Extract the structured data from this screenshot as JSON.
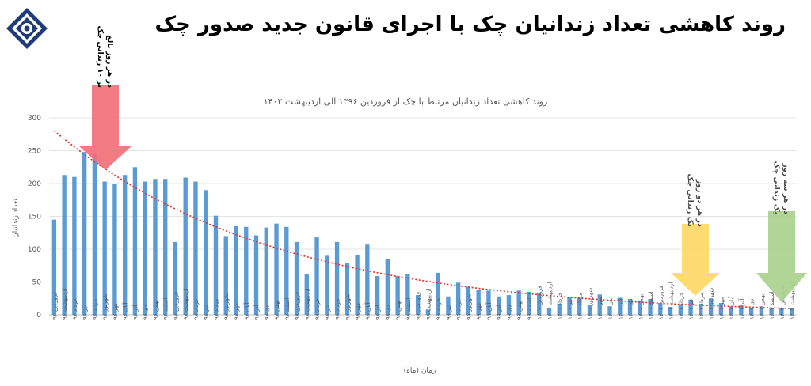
{
  "header": {
    "title": "روند کاهشی تعداد زندانیان چک با اجرای قانون جدید صدور چک"
  },
  "chart_data": {
    "type": "bar",
    "title": "روند کاهشی تعداد زندانیان مرتبط با چک از فروردین ۱۳۹۶ الی اردیبهشت ۱۴۰۲",
    "xlabel": "زمان (ماه)",
    "ylabel": "تعداد زندانیان",
    "ylim": [
      0,
      300
    ],
    "yticks": [
      0,
      50,
      100,
      150,
      200,
      250,
      300
    ],
    "grid": true,
    "legend": "none",
    "categories": [
      "فروردین ۹۶",
      "اردیبهشت ۹۶",
      "خرداد ۹۶",
      "تیر ۹۶",
      "مرداد ۹۶",
      "شهریور ۹۶",
      "مهر ۹۶",
      "آبان ۹۶",
      "آذر ۹۶",
      "دی ۹۶",
      "بهمن ۹۶",
      "اسفند ۹۶",
      "فروردین ۹۷",
      "اردیبهشت ۹۷",
      "خرداد ۹۷",
      "تیر ۹۷",
      "مرداد ۹۷",
      "شهریور ۹۷",
      "مهر ۹۷",
      "آبان ۹۷",
      "آذر ۹۷",
      "دی ۹۷",
      "بهمن ۹۷",
      "اسفند ۹۷",
      "فروردین ۹۸",
      "اردیبهشت ۹۸",
      "خرداد ۹۸",
      "تیر ۹۸",
      "مرداد ۹۸",
      "شهریور ۹۸",
      "مهر ۹۸",
      "آبان ۹۸",
      "آذر ۹۸",
      "دی ۹۸",
      "بهمن ۹۸",
      "اسفند ۹۸",
      "فروردین ۹۹",
      "اردیبهشت ۹۹",
      "خرداد ۹۹",
      "تیر ۹۹",
      "مرداد ۹۹",
      "شهریور ۹۹",
      "مهر ۹۹",
      "آبان ۹۹",
      "آذر ۹۹",
      "دی ۹۹",
      "بهمن ۹۹",
      "اسفند ۹۹",
      "فروردین ۱۴۰۰",
      "اردیبهشت ۱۴۰۰",
      "خرداد ۱۴۰۰",
      "تیر ۱۴۰۰",
      "مرداد ۱۴۰۰",
      "شهریور ۱۴۰۰",
      "مهر ۱۴۰۰",
      "آبان ۱۴۰۰",
      "آذر ۱۴۰۰",
      "دی ۱۴۰۰",
      "بهمن ۱۴۰۰",
      "اسفند ۱۴۰۰",
      "فروردین ۱۴۰۱",
      "اردیبهشت ۱۴۰۱",
      "خرداد ۱۴۰۱",
      "تیر ۱۴۰۱",
      "مرداد ۱۴۰۱",
      "شهریور ۱۴۰۱",
      "مهر ۱۴۰۱",
      "آبان ۱۴۰۱",
      "آذر ۱۴۰۱",
      "دی ۱۴۰۱",
      "بهمن ۱۴۰۱",
      "اسفند ۱۴۰۱",
      "فروردین ۱۴۰۲",
      "اردیبهشت ۱۴۰۲"
    ],
    "values": [
      145,
      213,
      210,
      248,
      245,
      203,
      200,
      213,
      225,
      203,
      207,
      207,
      111,
      209,
      203,
      190,
      151,
      120,
      135,
      134,
      121,
      133,
      139,
      134,
      111,
      62,
      118,
      90,
      111,
      79,
      91,
      107,
      59,
      85,
      59,
      62,
      30,
      8,
      64,
      28,
      49,
      43,
      38,
      37,
      28,
      30,
      37,
      35,
      33,
      10,
      17,
      27,
      26,
      15,
      31,
      13,
      26,
      24,
      22,
      24,
      18,
      12,
      15,
      23,
      17,
      25,
      18,
      13,
      15,
      10,
      13,
      10,
      10,
      10
    ],
    "trendline": {
      "type": "exponential",
      "style": "dotted",
      "color": "#e0302a"
    },
    "bar_color": "#5b9bd5",
    "annotations": [
      {
        "text": [
          "در هر روز بالغ",
          "بر ۱۰ زندانی چک"
        ],
        "color": "#f2707a",
        "text_color": "#000000"
      },
      {
        "text": [
          "در هر دو روز",
          "یک زندانی چک"
        ],
        "color": "#ffd966",
        "text_color": "#4a4a4a"
      },
      {
        "text": [
          "در هر سه روز",
          "یک زندانی چک"
        ],
        "color": "#a9d18e",
        "text_color": "#4a4a4a"
      }
    ]
  }
}
